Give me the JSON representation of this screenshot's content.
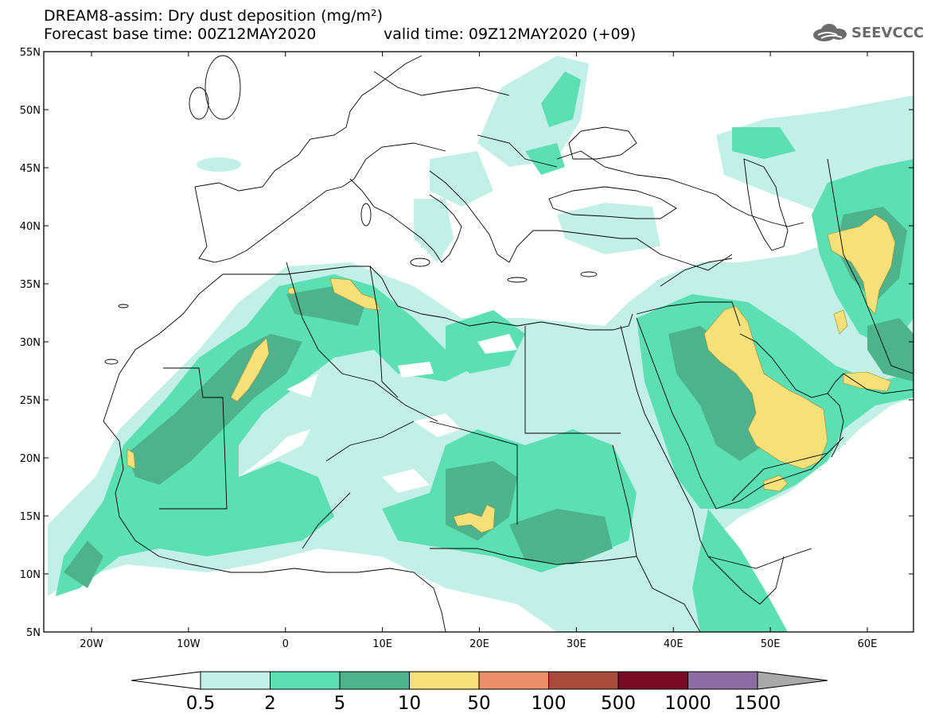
{
  "header": {
    "title": "DREAM8-assim: Dry dust deposition (mg/m²)",
    "base_time": "Forecast base time: 00Z12MAY2020",
    "valid_time": "valid time: 09Z12MAY2020 (+09)",
    "logo_text": "SEEVCCC"
  },
  "map": {
    "lat_labels": [
      "55N",
      "50N",
      "45N",
      "40N",
      "35N",
      "30N",
      "25N",
      "20N",
      "15N",
      "10N",
      "5N"
    ],
    "lon_labels": [
      "20W",
      "10W",
      "0",
      "10E",
      "20E",
      "30E",
      "40E",
      "50E",
      "60E"
    ]
  },
  "legend": {
    "levels": [
      "0.5",
      "2",
      "5",
      "10",
      "50",
      "100",
      "500",
      "1000",
      "1500"
    ],
    "colors": [
      "#ffffff",
      "#c2f0e6",
      "#5ce0b3",
      "#4db38c",
      "#f5e07a",
      "#ea8f6a",
      "#a84a3c",
      "#7a0d25",
      "#8c6ea3",
      "#a9a9a9"
    ]
  }
}
